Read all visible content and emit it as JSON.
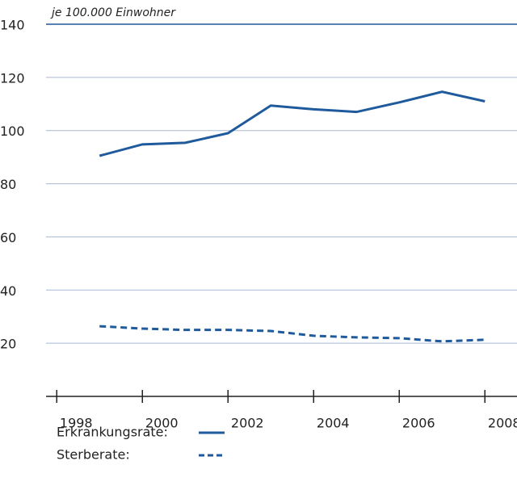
{
  "chart_data": {
    "type": "line",
    "subtitle": "je 100.000 Einwohner",
    "x": [
      1999,
      2000,
      2001,
      2002,
      2003,
      2004,
      2005,
      2006,
      2007,
      2008
    ],
    "series": [
      {
        "name": "Erkrankungsrate:",
        "color": "#1f5a9c",
        "style": "solid",
        "values": [
          90.5,
          94.8,
          95.4,
          99,
          109.4,
          108,
          107,
          110.6,
          114.6,
          111
        ]
      },
      {
        "name": "Sterberate:",
        "color": "#1f5a9c",
        "style": "dashed",
        "values": [
          26.4,
          25.5,
          25,
          25,
          24.6,
          22.8,
          22.2,
          21.9,
          20.7,
          21.3
        ]
      }
    ],
    "xlim": [
      1997.75,
      2008.75
    ],
    "xticks": [
      1998,
      2000,
      2002,
      2004,
      2006,
      2008
    ],
    "ylim": [
      0,
      140
    ],
    "yticks": [
      20,
      40,
      60,
      80,
      100,
      120,
      140
    ],
    "grid": true
  }
}
